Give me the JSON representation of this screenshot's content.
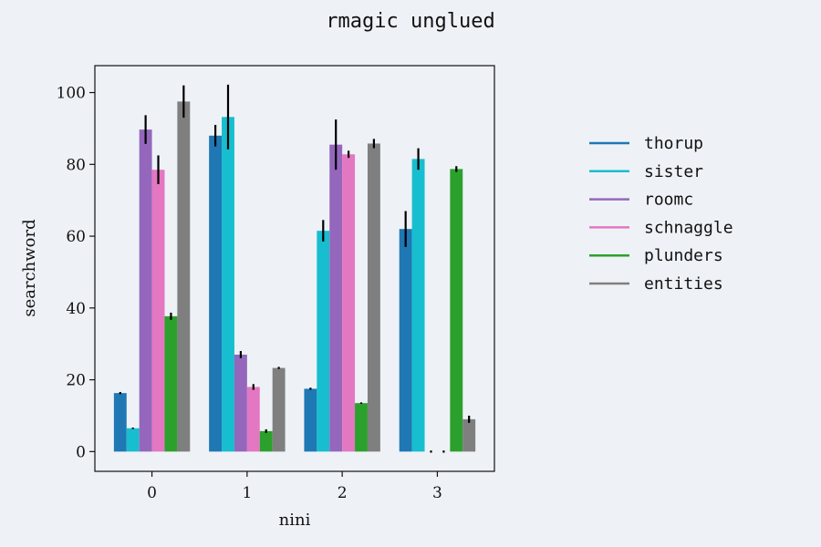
{
  "chart_data": {
    "type": "bar",
    "title": "rmagic unglued",
    "xlabel": "nini",
    "ylabel": "searchword",
    "categories": [
      "0",
      "1",
      "2",
      "3"
    ],
    "ylim": [
      -5.5,
      107.5
    ],
    "yticks": [
      0,
      20,
      40,
      60,
      80,
      100
    ],
    "grid": false,
    "legend_position": "right",
    "series": [
      {
        "name": "thorup",
        "color": "#1f77b4",
        "values": [
          16.3,
          88.0,
          17.5,
          62.0
        ],
        "errors": [
          0.3,
          3.0,
          0.3,
          5.0
        ]
      },
      {
        "name": "sister",
        "color": "#17becf",
        "values": [
          6.5,
          93.2,
          61.5,
          81.5
        ],
        "errors": [
          0.2,
          9.0,
          3.0,
          3.0
        ]
      },
      {
        "name": "roomc",
        "color": "#9467bd",
        "values": [
          89.7,
          27.0,
          85.5,
          0
        ],
        "errors": [
          4.0,
          1.0,
          7.0,
          0.3
        ]
      },
      {
        "name": "schnaggle",
        "color": "#e377c2",
        "values": [
          78.5,
          18.0,
          82.8,
          0
        ],
        "errors": [
          4.0,
          0.8,
          1.0,
          0.3
        ]
      },
      {
        "name": "plunders",
        "color": "#2ca02c",
        "values": [
          37.7,
          5.7,
          13.5,
          78.7
        ],
        "errors": [
          1.0,
          0.5,
          0.2,
          0.8
        ]
      },
      {
        "name": "entities",
        "color": "#7f7f7f",
        "values": [
          97.5,
          23.3,
          85.8,
          9.0
        ],
        "errors": [
          4.5,
          0.3,
          1.3,
          1.0
        ]
      }
    ]
  }
}
